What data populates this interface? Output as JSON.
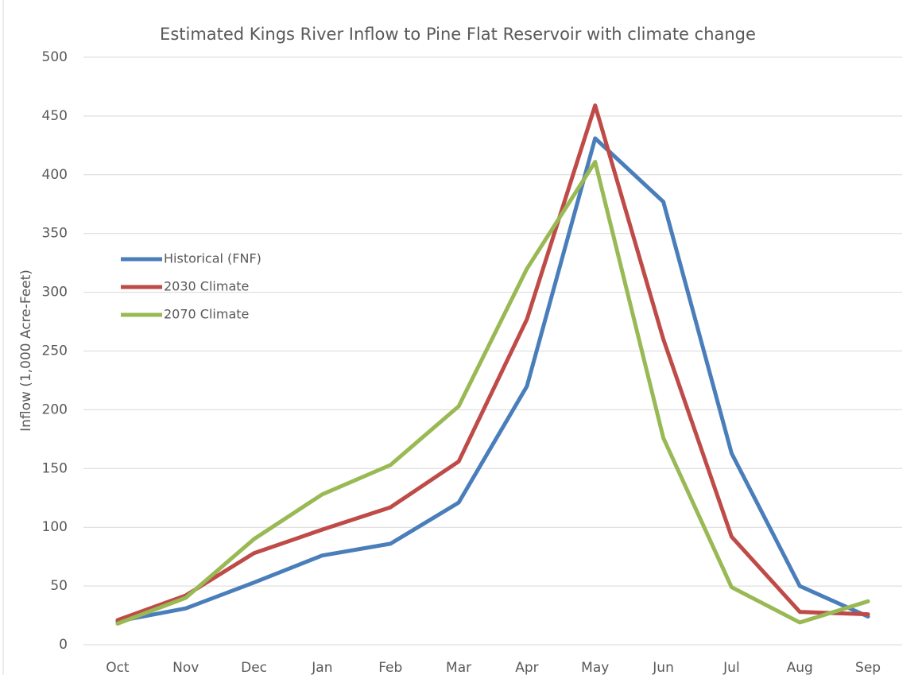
{
  "chart_data": {
    "type": "line",
    "title": "Estimated Kings River Inflow to Pine Flat Reservoir with climate change",
    "y_label": "Inflow (1,000 Acre-Feet)",
    "categories": [
      "Oct",
      "Nov",
      "Dec",
      "Jan",
      "Feb",
      "Mar",
      "Apr",
      "May",
      "Jun",
      "Jul",
      "Aug",
      "Sep"
    ],
    "series": [
      {
        "name": "Historical (FNF)",
        "color": "#4a7ebb",
        "values": [
          20,
          31,
          53,
          76,
          86,
          121,
          220,
          431,
          377,
          163,
          50,
          24
        ]
      },
      {
        "name": "2030 Climate",
        "color": "#be4b48",
        "values": [
          21,
          42,
          78,
          98,
          117,
          156,
          277,
          459,
          260,
          92,
          28,
          26
        ]
      },
      {
        "name": "2070 Climate",
        "color": "#98b954",
        "values": [
          18,
          40,
          90,
          128,
          153,
          203,
          320,
          411,
          176,
          49,
          19,
          37
        ]
      }
    ],
    "ylim": [
      0,
      500
    ],
    "yticks": [
      0,
      50,
      100,
      150,
      200,
      250,
      300,
      350,
      400,
      450,
      500
    ],
    "grid": true,
    "legend": "left"
  }
}
